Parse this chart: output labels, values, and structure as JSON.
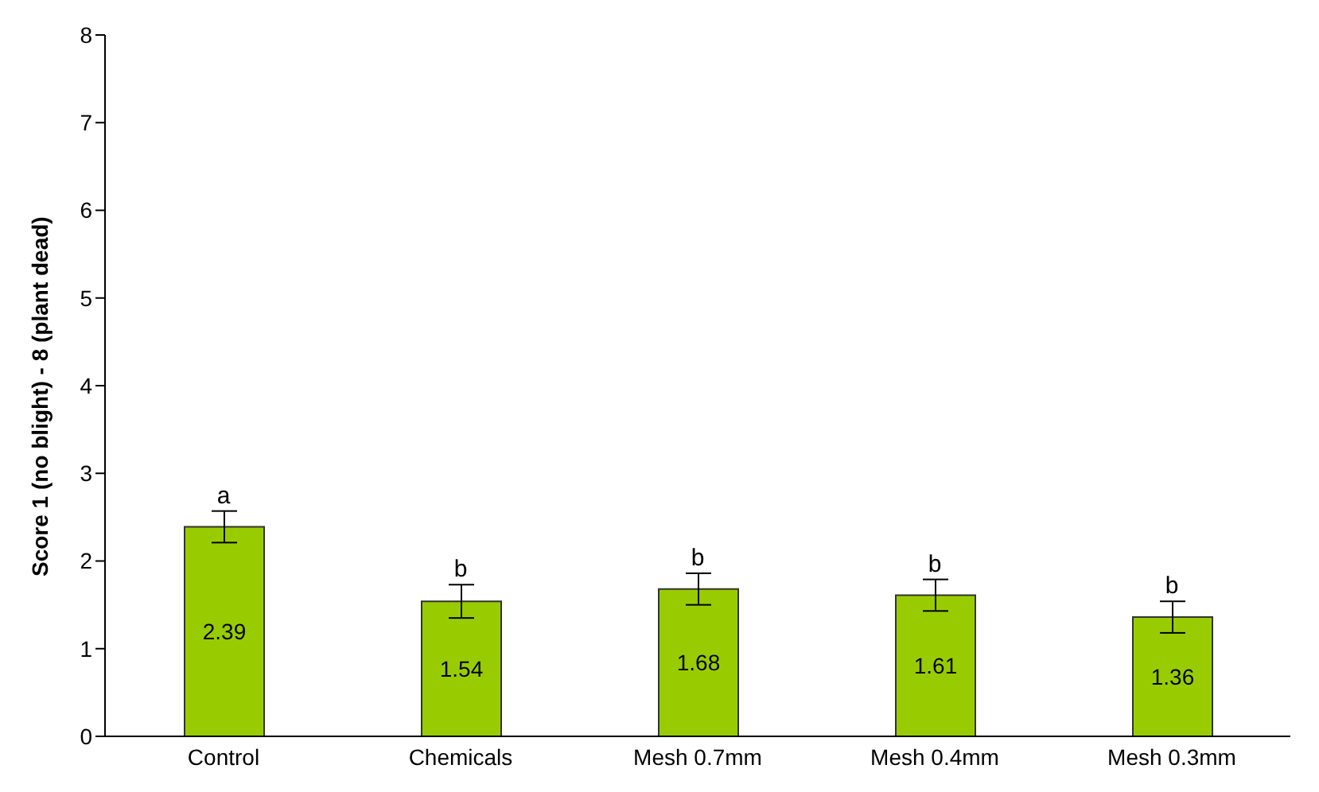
{
  "chart_data": {
    "type": "bar",
    "ylabel": "Score 1 (no blight) - 8 (plant dead)",
    "categories": [
      "Control",
      "Chemicals",
      "Mesh 0.7mm",
      "Mesh 0.4mm",
      "Mesh 0.3mm"
    ],
    "values": [
      2.39,
      1.54,
      1.68,
      1.61,
      1.36
    ],
    "errors": [
      0.18,
      0.19,
      0.18,
      0.18,
      0.18
    ],
    "color": "#99cc00",
    "ylim": [
      0,
      8
    ],
    "yticks": [
      0,
      1,
      2,
      3,
      4,
      5,
      6,
      7,
      8
    ],
    "grid": false,
    "data_labels": true,
    "annotations": [
      {
        "text": "a",
        "x": "Control",
        "y": 2.57
      },
      {
        "text": "b",
        "x": "Chemicals",
        "y": 1.73
      },
      {
        "text": "b",
        "x": "Mesh 0.7mm",
        "y": 1.86
      },
      {
        "text": "b",
        "x": "Mesh 0.4mm",
        "y": 1.79
      },
      {
        "text": "b",
        "x": "Mesh 0.3mm",
        "y": 1.54
      }
    ]
  }
}
